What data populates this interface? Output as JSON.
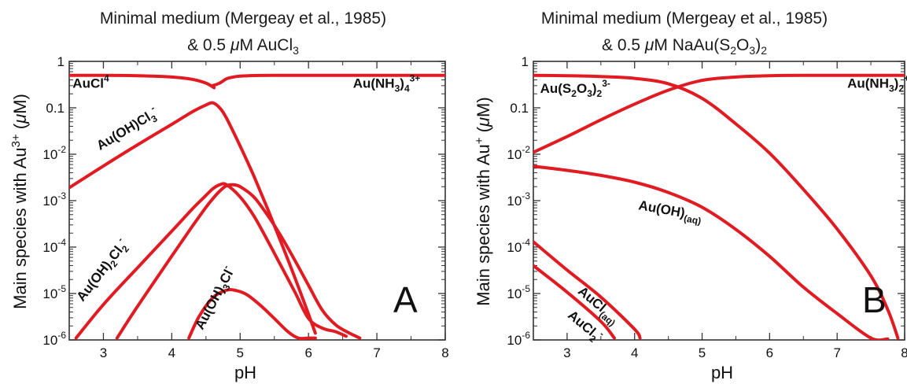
{
  "chart_data": [
    {
      "type": "line",
      "panel": "A",
      "title_line1": "Minimal medium (Mergeay et al., 1985)",
      "title_line2_prefix": "& 0.5 ",
      "title_mu": "μ",
      "title_line2_mid": "M AuCl",
      "title_line2_sub": "3",
      "ylabel_prefix": "Main species with Au",
      "ylabel_sup": "3+",
      "ylabel_suffix": " (",
      "ylabel_mu": "μ",
      "ylabel_end": "M)",
      "xlabel": "pH",
      "xlim": [
        2.5,
        8.0
      ],
      "ylim": [
        1e-06,
        1
      ],
      "yscale": "log",
      "xticks": [
        "3",
        "4",
        "5",
        "6",
        "7",
        "8"
      ],
      "yticks": [
        {
          "base": "1",
          "exp": ""
        },
        {
          "base": "0.1",
          "exp": ""
        },
        {
          "base": "10",
          "exp": "-2"
        },
        {
          "base": "10",
          "exp": "-3"
        },
        {
          "base": "10",
          "exp": "-4"
        },
        {
          "base": "10",
          "exp": "-5"
        },
        {
          "base": "10",
          "exp": "-6"
        }
      ],
      "series": [
        {
          "id": "AuCl4",
          "label_parts": [
            [
              "AuCl",
              ""
            ],
            [
              "4",
              "sup-"
            ]
          ],
          "x": [
            2.5,
            3.0,
            3.5,
            4.0,
            4.3,
            4.5,
            4.62
          ],
          "y": [
            0.5,
            0.5,
            0.49,
            0.46,
            0.41,
            0.34,
            0.27
          ]
        },
        {
          "id": "AuOHCl3",
          "label_parts": [
            [
              "Au(OH)Cl",
              ""
            ],
            [
              "3",
              "sub"
            ],
            [
              "-",
              "sup"
            ]
          ],
          "x": [
            2.5,
            3.0,
            3.5,
            4.0,
            4.3,
            4.5,
            4.6,
            4.7,
            4.8,
            5.0,
            5.2,
            5.4,
            5.6,
            5.8,
            6.0,
            6.1
          ],
          "y": [
            0.0019,
            0.0056,
            0.016,
            0.044,
            0.082,
            0.115,
            0.128,
            0.1,
            0.06,
            0.015,
            0.0034,
            0.00068,
            0.000125,
            2.21e-05,
            3.6e-06,
            1.4e-06
          ]
        },
        {
          "id": "AuOH2Cl2",
          "label_parts": [
            [
              "Au(OH)",
              ""
            ],
            [
              "2",
              "sub"
            ],
            [
              "Cl",
              ""
            ],
            [
              "2",
              "sub"
            ],
            [
              "-",
              "sup"
            ]
          ],
          "x": [
            2.6,
            3.0,
            3.5,
            4.0,
            4.3,
            4.5,
            4.6,
            4.7,
            4.8,
            5.0,
            5.2,
            5.4,
            5.6,
            5.8,
            6.0,
            6.2,
            6.4,
            6.55
          ],
          "y": [
            1.1e-06,
            5.8e-06,
            3.6e-05,
            0.00022,
            0.00066,
            0.0013,
            0.0018,
            0.0022,
            0.0022,
            0.0012,
            0.00047,
            0.00014,
            3.9e-05,
            1.08e-05,
            2.9e-06,
            1.8e-06,
            1.5e-06,
            1.2e-06
          ]
        },
        {
          "id": "AuOH3Cl",
          "label_parts": [
            [
              "Au(OH)",
              ""
            ],
            [
              "3",
              "sub"
            ],
            [
              "Cl",
              ""
            ],
            [
              "-",
              "sup"
            ]
          ],
          "x": [
            3.2,
            3.5,
            4.0,
            4.3,
            4.5,
            4.6,
            4.7,
            4.8,
            4.9,
            5.0,
            5.2,
            5.4,
            5.6,
            5.8,
            6.0,
            6.2,
            6.4,
            6.6,
            6.75
          ],
          "y": [
            1.1e-06,
            5.3e-06,
            6.4e-05,
            0.00028,
            0.00072,
            0.0011,
            0.0016,
            0.0021,
            0.0022,
            0.002,
            0.0012,
            0.00049,
            0.00017,
            5.2e-05,
            1.5e-05,
            4.4e-06,
            2.1e-06,
            1.4e-06,
            1.1e-06
          ]
        },
        {
          "id": "AuOH3Cl_low",
          "label_parts": [],
          "x": [
            4.25,
            4.4,
            4.6,
            4.8,
            4.95,
            5.1,
            5.3,
            5.5,
            5.7,
            5.85,
            6.0,
            6.1
          ],
          "y": [
            1.1e-06,
            3.2e-06,
            8.1e-06,
            1.18e-05,
            1.15e-05,
            9.4e-06,
            5.5e-06,
            2.9e-06,
            1.5e-06,
            1.1e-06,
            1.1e-06,
            1.1e-06
          ]
        },
        {
          "id": "AuNH34",
          "label_parts": [
            [
              "Au(NH",
              ""
            ],
            [
              "3",
              "sub"
            ],
            [
              ")",
              ""
            ],
            [
              "4",
              "sub"
            ],
            [
              "3+",
              "sup"
            ]
          ],
          "x": [
            4.6,
            4.7,
            4.8,
            4.9,
            5.0,
            5.2,
            5.5,
            6.0,
            7.0,
            8.0
          ],
          "y": [
            0.3,
            0.34,
            0.42,
            0.46,
            0.48,
            0.495,
            0.5,
            0.5,
            0.5,
            0.5
          ]
        }
      ],
      "colors": {
        "curve": "#e11b22",
        "frame": "#333333"
      }
    },
    {
      "type": "line",
      "panel": "B",
      "title_line1": "Minimal medium (Mergeay et al., 1985)",
      "title_line2_prefix": "& 0.5 ",
      "title_mu": "μ",
      "title_line2_mid": "M NaAu(S",
      "title_line2_sub": "2",
      "title_line2_mid2": "O",
      "title_line2_sub2": "3",
      "title_line2_mid3": ")",
      "title_line2_sub3": "2",
      "ylabel_prefix": "Main species with Au",
      "ylabel_sup": "+",
      "ylabel_suffix": " (",
      "ylabel_mu": "μ",
      "ylabel_end": "M)",
      "xlabel": "pH",
      "xlim": [
        2.5,
        8.0
      ],
      "ylim": [
        1e-06,
        1
      ],
      "yscale": "log",
      "xticks": [
        "3",
        "4",
        "5",
        "6",
        "7",
        "8"
      ],
      "yticks": [
        {
          "base": "1",
          "exp": ""
        },
        {
          "base": "0.1",
          "exp": ""
        },
        {
          "base": "10",
          "exp": "-2"
        },
        {
          "base": "10",
          "exp": "-3"
        },
        {
          "base": "10",
          "exp": "-4"
        },
        {
          "base": "10",
          "exp": "-5"
        },
        {
          "base": "10",
          "exp": "-6"
        }
      ],
      "series": [
        {
          "id": "AuS2O32",
          "label_parts": [
            [
              "Au(S",
              ""
            ],
            [
              "2",
              "sub"
            ],
            [
              "O",
              ""
            ],
            [
              "3",
              "sub"
            ],
            [
              ")",
              ""
            ],
            [
              "2",
              "sub"
            ],
            [
              "3-",
              "sup"
            ]
          ],
          "x": [
            2.5,
            3.0,
            3.5,
            4.0,
            4.5,
            5.0,
            5.5,
            6.0,
            6.5,
            7.0,
            7.5,
            7.75,
            7.9
          ],
          "y": [
            0.5,
            0.49,
            0.47,
            0.43,
            0.33,
            0.16,
            0.045,
            0.0105,
            0.00175,
            0.000245,
            2.4e-05,
            4.5e-06,
            1.1e-06
          ]
        },
        {
          "id": "AuNH32",
          "label_parts": [
            [
              "Au(NH",
              ""
            ],
            [
              "3",
              "sub"
            ],
            [
              ")",
              ""
            ],
            [
              "2",
              "sub"
            ],
            [
              "+",
              "sup"
            ]
          ],
          "x": [
            2.5,
            3.0,
            3.5,
            4.0,
            4.5,
            5.0,
            5.5,
            6.0,
            6.5,
            7.0,
            8.0
          ],
          "y": [
            0.011,
            0.024,
            0.055,
            0.12,
            0.24,
            0.39,
            0.46,
            0.49,
            0.5,
            0.5,
            0.5
          ]
        },
        {
          "id": "AuOHaq",
          "label_parts": [
            [
              "Au(OH)",
              ""
            ],
            [
              "(aq)",
              "sub"
            ]
          ],
          "x": [
            2.5,
            3.0,
            3.5,
            4.0,
            4.5,
            5.0,
            5.5,
            6.0,
            6.5,
            7.0,
            7.5,
            7.75
          ],
          "y": [
            0.0055,
            0.0045,
            0.0035,
            0.0025,
            0.0015,
            0.00072,
            0.00024,
            6.3e-05,
            1.37e-05,
            3.7e-06,
            1.1e-06,
            1.05e-06
          ]
        },
        {
          "id": "AuClaq",
          "label_parts": [
            [
              "AuCl",
              ""
            ],
            [
              "(aq)",
              "sub"
            ]
          ],
          "x": [
            2.5,
            3.0,
            3.5,
            4.0,
            4.08
          ],
          "y": [
            0.00013,
            3.2e-05,
            8.4e-06,
            1.7e-06,
            1.1e-06
          ]
        },
        {
          "id": "AuCl2",
          "label_parts": [
            [
              "AuCl",
              ""
            ],
            [
              "2",
              "sub"
            ],
            [
              "-",
              "sup"
            ]
          ],
          "x": [
            2.5,
            3.0,
            3.5,
            3.7
          ],
          "y": [
            3.98e-05,
            1.07e-05,
            2.5e-06,
            1.1e-06
          ]
        }
      ],
      "colors": {
        "curve": "#e11b22",
        "frame": "#333333"
      }
    }
  ]
}
